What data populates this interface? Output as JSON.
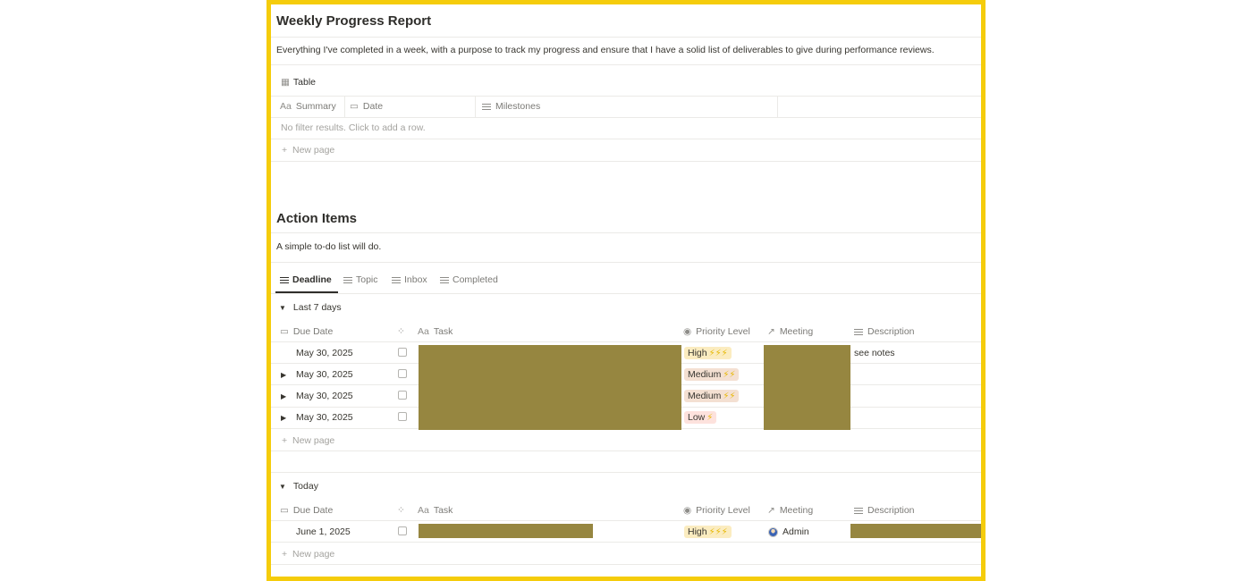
{
  "page": {
    "title": "Weekly Progress Report",
    "description": "Everything I've completed in a week, with a purpose to track my progress and ensure that I have a solid list of deliverables to give during performance reviews."
  },
  "table_view": {
    "label": "Table",
    "columns": [
      "Summary",
      "Date",
      "Milestones"
    ],
    "empty_text": "No filter results. Click to add a row.",
    "new_page": "New page"
  },
  "action_items": {
    "title": "Action Items",
    "description": "A simple to-do list will do.",
    "tabs": [
      "Deadline",
      "Topic",
      "Inbox",
      "Completed"
    ],
    "columns": [
      "Due Date",
      "Task",
      "Priority Level",
      "Meeting",
      "Description"
    ],
    "groups": [
      {
        "label": "Last 7 days",
        "rows": [
          {
            "due": "May 30, 2025",
            "priority": "High",
            "bolts": "⚡⚡⚡",
            "meeting": "",
            "description": "see notes"
          },
          {
            "due": "May 30, 2025",
            "priority": "Medium",
            "bolts": "⚡⚡",
            "meeting": "",
            "description": ""
          },
          {
            "due": "May 30, 2025",
            "priority": "Medium",
            "bolts": "⚡⚡",
            "meeting": "",
            "description": ""
          },
          {
            "due": "May 30, 2025",
            "priority": "Low",
            "bolts": "⚡",
            "meeting": "",
            "description": ""
          }
        ],
        "new_page": "New page"
      },
      {
        "label": "Today",
        "rows": [
          {
            "due": "June 1, 2025",
            "priority": "High",
            "bolts": "⚡⚡⚡",
            "meeting": "Admin",
            "description": ""
          }
        ],
        "new_page": "New page"
      }
    ]
  },
  "colors": {
    "frame_border": "#f5cc0b",
    "redaction": "#968640",
    "high": "#fbecc0",
    "medium": "#f4e0d2",
    "low": "#fde2dd"
  }
}
